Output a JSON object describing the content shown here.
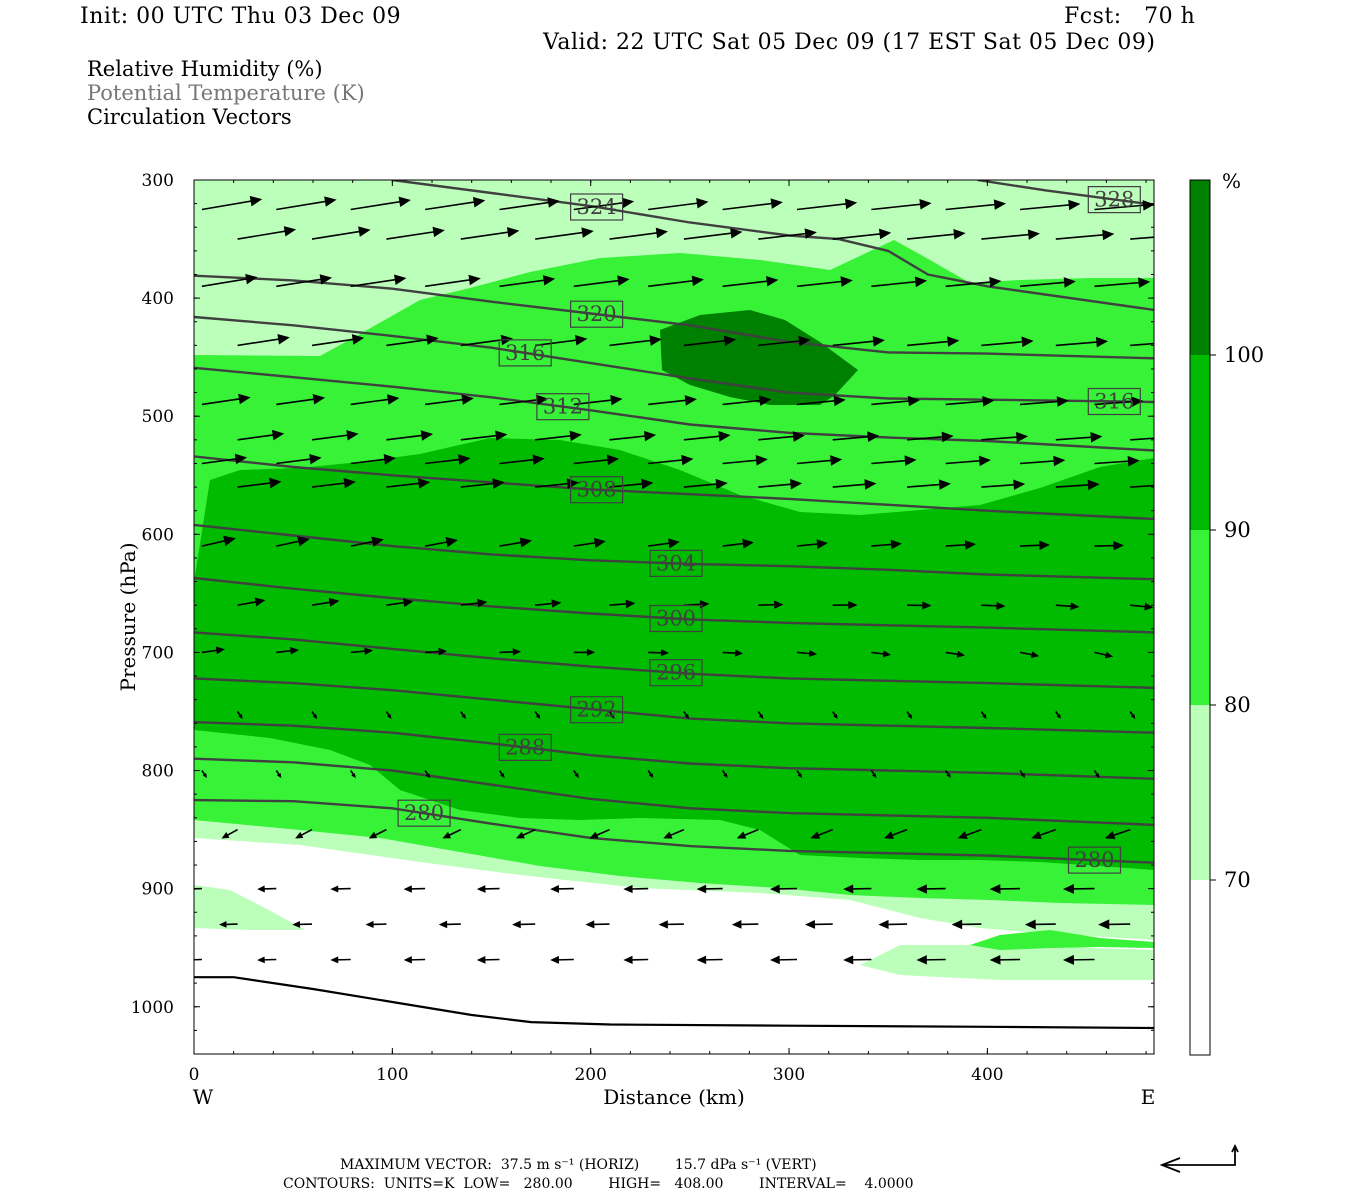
{
  "header": {
    "init": "Init: 00 UTC Thu 03 Dec 09",
    "fcst": "Fcst:   70 h",
    "valid": "Valid: 22 UTC Sat 05 Dec 09 (17 EST Sat 05 Dec 09)"
  },
  "legend": {
    "line1": "Relative Humidity (%)",
    "line2": "Potential Temperature (K)",
    "line3": "Circulation Vectors"
  },
  "footer": {
    "line1": "MAXIMUM VECTOR:  37.5 m s⁻¹ (HORIZ)        15.7 dPa s⁻¹ (VERT)",
    "line2": "CONTOURS:  UNITS=K  LOW=   280.00        HIGH=   408.00        INTERVAL=    4.0000"
  },
  "colors": {
    "rh_70_80": "#bbffbb",
    "rh_80_90": "#38f238",
    "rh_90_100": "#00bb00",
    "rh_100": "#008000",
    "theta_line": "#404040"
  },
  "chart_data": {
    "type": "contour",
    "xlabel": "Distance (km)",
    "ylabel": "Pressure (hPa)",
    "xlim": [
      0,
      484
    ],
    "ylim": [
      300,
      1040
    ],
    "x_ticks": [
      0,
      100,
      200,
      300,
      400
    ],
    "x_tick_labels": [
      "0",
      "100",
      "200",
      "300",
      "400"
    ],
    "y_ticks": [
      300,
      400,
      500,
      600,
      700,
      800,
      900,
      1000
    ],
    "y_tick_labels": [
      "300",
      "400",
      "500",
      "600",
      "700",
      "800",
      "900",
      "1000"
    ],
    "x_end_labels": {
      "left": "W",
      "right": "E"
    },
    "colorbar": {
      "unit": "%",
      "levels": [
        70,
        80,
        90,
        100
      ],
      "level_labels": [
        "70",
        "80",
        "90",
        "100"
      ]
    },
    "theta_contours": [
      {
        "value": 280,
        "points": [
          [
            0,
            825
          ],
          [
            50,
            826
          ],
          [
            100,
            832
          ],
          [
            150,
            845
          ],
          [
            200,
            857
          ],
          [
            250,
            864
          ],
          [
            300,
            868
          ],
          [
            350,
            870
          ],
          [
            400,
            872
          ],
          [
            484,
            878
          ]
        ]
      },
      {
        "value": 284,
        "points": [
          [
            0,
            790
          ],
          [
            50,
            793
          ],
          [
            100,
            800
          ],
          [
            150,
            812
          ],
          [
            200,
            824
          ],
          [
            250,
            832
          ],
          [
            300,
            836
          ],
          [
            350,
            838
          ],
          [
            400,
            840
          ],
          [
            484,
            846
          ]
        ]
      },
      {
        "value": 288,
        "points": [
          [
            0,
            759
          ],
          [
            50,
            762
          ],
          [
            100,
            768
          ],
          [
            150,
            777
          ],
          [
            200,
            787
          ],
          [
            250,
            794
          ],
          [
            300,
            798
          ],
          [
            350,
            800
          ],
          [
            400,
            802
          ],
          [
            484,
            807
          ]
        ]
      },
      {
        "value": 292,
        "points": [
          [
            0,
            722
          ],
          [
            50,
            726
          ],
          [
            100,
            732
          ],
          [
            150,
            740
          ],
          [
            200,
            748
          ],
          [
            250,
            756
          ],
          [
            300,
            760
          ],
          [
            350,
            762
          ],
          [
            400,
            764
          ],
          [
            484,
            768
          ]
        ]
      },
      {
        "value": 296,
        "points": [
          [
            0,
            683
          ],
          [
            50,
            689
          ],
          [
            100,
            697
          ],
          [
            150,
            705
          ],
          [
            200,
            712
          ],
          [
            250,
            718
          ],
          [
            300,
            722
          ],
          [
            350,
            724
          ],
          [
            400,
            726
          ],
          [
            484,
            730
          ]
        ]
      },
      {
        "value": 300,
        "points": [
          [
            0,
            637
          ],
          [
            50,
            646
          ],
          [
            100,
            654
          ],
          [
            150,
            661
          ],
          [
            200,
            667
          ],
          [
            250,
            672
          ],
          [
            300,
            675
          ],
          [
            350,
            677
          ],
          [
            400,
            679
          ],
          [
            484,
            683
          ]
        ]
      },
      {
        "value": 304,
        "points": [
          [
            0,
            592
          ],
          [
            50,
            601
          ],
          [
            100,
            610
          ],
          [
            150,
            617
          ],
          [
            200,
            622
          ],
          [
            250,
            625
          ],
          [
            300,
            627
          ],
          [
            350,
            630
          ],
          [
            400,
            634
          ],
          [
            484,
            638
          ]
        ]
      },
      {
        "value": 308,
        "points": [
          [
            0,
            534
          ],
          [
            50,
            543
          ],
          [
            100,
            550
          ],
          [
            150,
            556
          ],
          [
            200,
            562
          ],
          [
            250,
            566
          ],
          [
            300,
            570
          ],
          [
            350,
            575
          ],
          [
            400,
            580
          ],
          [
            484,
            587
          ]
        ]
      },
      {
        "value": 312,
        "points": [
          [
            0,
            459
          ],
          [
            50,
            467
          ],
          [
            100,
            475
          ],
          [
            150,
            484
          ],
          [
            200,
            495
          ],
          [
            250,
            507
          ],
          [
            300,
            514
          ],
          [
            350,
            518
          ],
          [
            400,
            521
          ],
          [
            484,
            529
          ]
        ]
      },
      {
        "value": 316,
        "points": [
          [
            0,
            416
          ],
          [
            50,
            423
          ],
          [
            100,
            432
          ],
          [
            150,
            442
          ],
          [
            200,
            455
          ],
          [
            250,
            468
          ],
          [
            300,
            480
          ],
          [
            350,
            485
          ],
          [
            400,
            486
          ],
          [
            484,
            488
          ]
        ]
      },
      {
        "value": 320,
        "points": [
          [
            0,
            381
          ],
          [
            50,
            385
          ],
          [
            100,
            392
          ],
          [
            150,
            403
          ],
          [
            200,
            413
          ],
          [
            250,
            423
          ],
          [
            300,
            437
          ],
          [
            350,
            446
          ],
          [
            400,
            447
          ],
          [
            484,
            451
          ]
        ]
      },
      {
        "value": 324,
        "points": [
          [
            100,
            300
          ],
          [
            150,
            311
          ],
          [
            200,
            322
          ],
          [
            250,
            336
          ],
          [
            300,
            347
          ],
          [
            325,
            350
          ],
          [
            350,
            360
          ],
          [
            370,
            380
          ],
          [
            400,
            390
          ],
          [
            484,
            410
          ]
        ]
      },
      {
        "value": 328,
        "points": [
          [
            395,
            300
          ],
          [
            430,
            309
          ],
          [
            484,
            321
          ]
        ]
      }
    ],
    "surface_pressure": [
      [
        0,
        975
      ],
      [
        20,
        975
      ],
      [
        60,
        985
      ],
      [
        100,
        996
      ],
      [
        140,
        1007
      ],
      [
        170,
        1013
      ],
      [
        210,
        1015
      ],
      [
        300,
        1016
      ],
      [
        400,
        1017
      ],
      [
        484,
        1018
      ]
    ]
  }
}
